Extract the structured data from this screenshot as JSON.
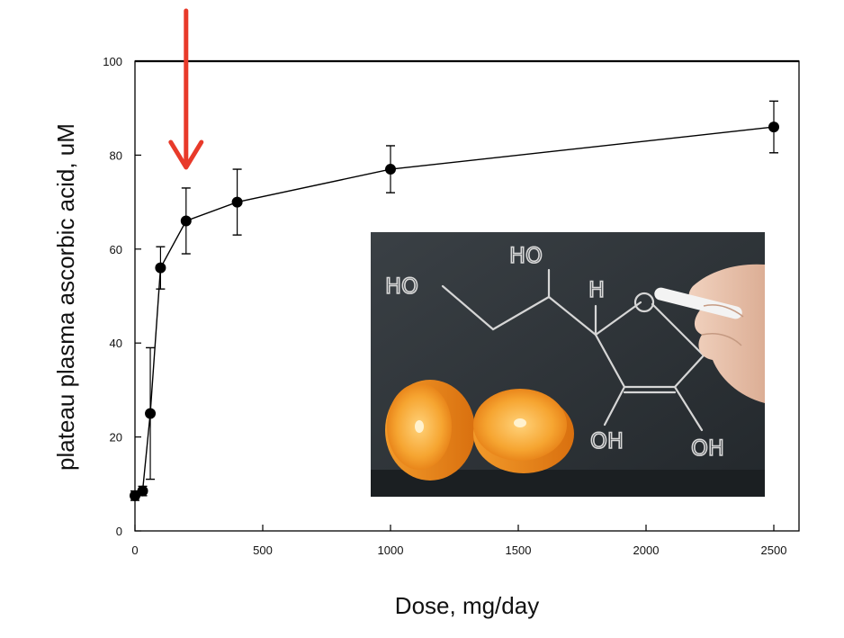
{
  "chart_data": {
    "type": "line",
    "xlabel": "Dose, mg/day",
    "ylabel": "plateau plasma ascorbic acid, uM",
    "xlim": [
      0,
      2500
    ],
    "ylim": [
      0,
      100
    ],
    "xticks": [
      0,
      500,
      1000,
      1500,
      2000,
      2500
    ],
    "yticks": [
      0,
      20,
      40,
      60,
      80,
      100
    ],
    "grid": false,
    "x": [
      0,
      30,
      60,
      100,
      200,
      400,
      1000,
      2500
    ],
    "y": [
      7.5,
      8.5,
      25,
      56,
      66,
      70,
      77,
      86
    ],
    "error": [
      1,
      1,
      14,
      4.5,
      7,
      7,
      5,
      5.5
    ],
    "annotation_arrow_dose": 200,
    "arrow_color": "#e83a2a",
    "inset_photo": {
      "formula_labels": [
        "HO",
        "HO",
        "H",
        "OH",
        "OH"
      ],
      "board_color": "#2b3136",
      "orange_color": "#ef8a1c"
    }
  }
}
